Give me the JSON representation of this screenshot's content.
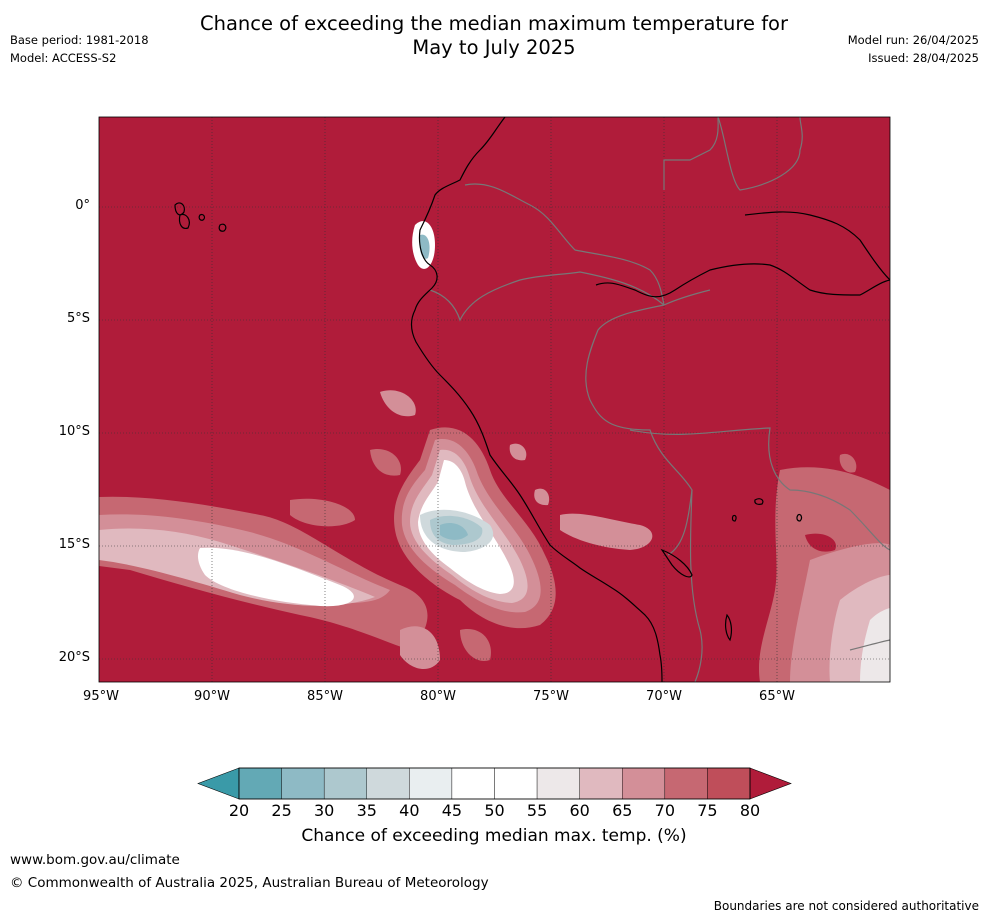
{
  "header": {
    "title_line1": "Chance of exceeding the median maximum temperature for",
    "title_line2": "May to July 2025",
    "base_period": "Base period: 1981-2018",
    "model": "Model: ACCESS-S2",
    "model_run": "Model run: 26/04/2025",
    "issued": "Issued: 28/04/2025"
  },
  "map": {
    "lat_labels": [
      "0°",
      "5°S",
      "10°S",
      "15°S",
      "20°S"
    ],
    "lon_labels": [
      "95°W",
      "90°W",
      "85°W",
      "80°W",
      "75°W",
      "70°W",
      "65°W"
    ],
    "background_color": "#b01c3a"
  },
  "colorbar": {
    "ticks": [
      "20",
      "25",
      "30",
      "35",
      "40",
      "45",
      "50",
      "55",
      "60",
      "65",
      "70",
      "75",
      "80"
    ],
    "colors": [
      "#63a9b5",
      "#8ebac5",
      "#adc8ce",
      "#cfd9dc",
      "#e9eef0",
      "#ffffff",
      "#ffffff",
      "#ede8e9",
      "#e0b9bf",
      "#d38f98",
      "#c66872",
      "#bf4e5a"
    ],
    "under_color": "#3a9aa8",
    "over_color": "#b01c3a",
    "label": "Chance of exceeding median max. temp. (%)"
  },
  "footer": {
    "url": "www.bom.gov.au/climate",
    "copyright": "© Commonwealth of Australia 2025, Australian Bureau of Meteorology",
    "disclaimer": "Boundaries are not considered authoritative"
  }
}
